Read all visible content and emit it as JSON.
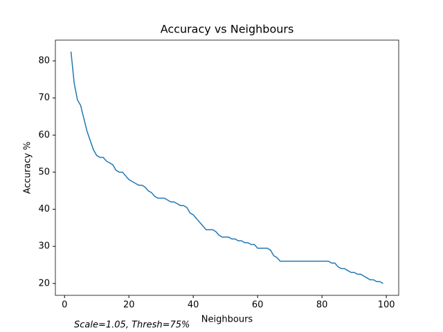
{
  "chart_data": {
    "type": "line",
    "title": "Accuracy vs Neighbours",
    "x_label": "Neighbours",
    "y_label": "Accuracy %",
    "annotation": "Scale=1.05, Thresh=75%",
    "color": "#1f77b4",
    "x": [
      2,
      3,
      4,
      5,
      6,
      7,
      8,
      9,
      10,
      11,
      12,
      13,
      14,
      15,
      16,
      17,
      18,
      19,
      20,
      21,
      22,
      23,
      24,
      25,
      26,
      27,
      28,
      29,
      30,
      31,
      32,
      33,
      34,
      35,
      36,
      37,
      38,
      39,
      40,
      41,
      42,
      43,
      44,
      45,
      46,
      47,
      48,
      49,
      50,
      51,
      52,
      53,
      54,
      55,
      56,
      57,
      58,
      59,
      60,
      61,
      62,
      63,
      64,
      65,
      66,
      67,
      68,
      69,
      70,
      71,
      72,
      73,
      74,
      75,
      76,
      77,
      78,
      79,
      80,
      81,
      82,
      83,
      84,
      85,
      86,
      87,
      88,
      89,
      90,
      91,
      92,
      93,
      94,
      95,
      96,
      97,
      98,
      99
    ],
    "values": [
      82.5,
      74,
      69.5,
      68,
      64.5,
      61,
      58.5,
      56,
      54.5,
      54,
      54,
      53,
      52.5,
      52,
      50.5,
      50,
      50,
      49,
      48,
      47.5,
      47,
      46.5,
      46.5,
      46,
      45,
      44.5,
      43.5,
      43,
      43,
      43,
      42.5,
      42,
      42,
      41.5,
      41,
      41,
      40.5,
      39,
      38.5,
      37.5,
      36.5,
      35.5,
      34.5,
      34.5,
      34.5,
      34,
      33,
      32.5,
      32.5,
      32.5,
      32,
      32,
      31.5,
      31.5,
      31,
      31,
      30.5,
      30.5,
      29.5,
      29.5,
      29.5,
      29.5,
      29,
      27.5,
      27,
      26,
      26,
      26,
      26,
      26,
      26,
      26,
      26,
      26,
      26,
      26,
      26,
      26,
      26,
      26,
      26,
      25.5,
      25.5,
      24.5,
      24,
      24,
      23.5,
      23,
      23,
      22.5,
      22.5,
      22,
      21.5,
      21,
      21,
      20.5,
      20.5,
      20
    ],
    "xlim": [
      -2.85,
      103.85
    ],
    "ylim": [
      16.8,
      85.6
    ],
    "xticks": [
      0,
      20,
      40,
      60,
      80,
      100
    ],
    "yticks": [
      20,
      30,
      40,
      50,
      60,
      70,
      80
    ]
  }
}
